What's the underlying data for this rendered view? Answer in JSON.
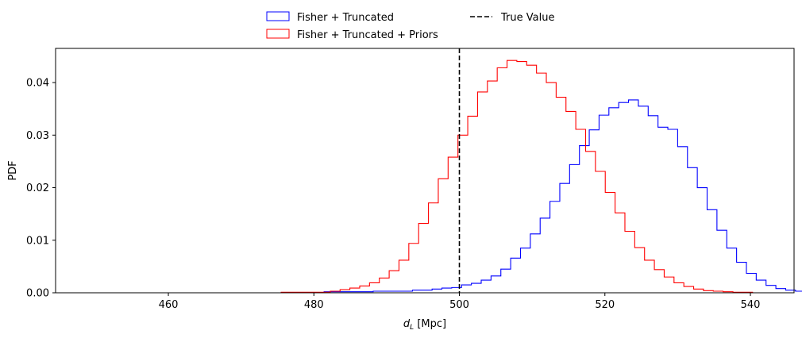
{
  "chart_data": {
    "type": "histogram",
    "xlabel_main": "d",
    "xlabel_sub": "L",
    "xlabel_unit": " [Mpc]",
    "ylabel": "PDF",
    "xlim": [
      444.5,
      546
    ],
    "ylim": [
      0,
      0.0465
    ],
    "xticks": [
      460,
      480,
      500,
      520,
      540
    ],
    "yticks": [
      0.0,
      0.01,
      0.02,
      0.03,
      0.04
    ],
    "ytick_labels": [
      "0.00",
      "0.01",
      "0.02",
      "0.03",
      "0.04"
    ],
    "grid": false,
    "legend_position": "top-center",
    "true_value": {
      "name": "True Value",
      "x": 500,
      "color": "#000000"
    },
    "series": [
      {
        "name": "Fisher + Truncated",
        "color": "#0000ff",
        "bin_start": 449,
        "bin_width": 1.35,
        "values": [
          0,
          0,
          0,
          0,
          0,
          0,
          0,
          0,
          0,
          0,
          0,
          0,
          0,
          0,
          0,
          0,
          0,
          0,
          0,
          0,
          0,
          0,
          0,
          0,
          0.0002,
          0.0002,
          0.0002,
          0.0002,
          0.0002,
          0.0003,
          0.0003,
          0.0003,
          0.0003,
          0.0005,
          0.0005,
          0.0007,
          0.0009,
          0.001,
          0.0015,
          0.0018,
          0.0024,
          0.0032,
          0.0045,
          0.0066,
          0.0085,
          0.0112,
          0.0142,
          0.0174,
          0.0208,
          0.0244,
          0.028,
          0.031,
          0.0338,
          0.0352,
          0.0362,
          0.0367,
          0.0355,
          0.0337,
          0.0315,
          0.0311,
          0.0278,
          0.0238,
          0.02,
          0.0158,
          0.0119,
          0.0085,
          0.0058,
          0.0037,
          0.0024,
          0.0014,
          0.0008,
          0.0005,
          0.0003,
          0.0002,
          0.0001,
          0.0001,
          0.0001,
          0.0001,
          0.0001,
          0.0001,
          0.0001,
          0.0001,
          0.0001,
          0.0001
        ]
      },
      {
        "name": "Fisher + Truncated + Priors",
        "color": "#ff0000",
        "bin_start": 475.5,
        "bin_width": 1.35,
        "values": [
          0.0001,
          0.0001,
          0.0001,
          0.0001,
          0.0001,
          0.0003,
          0.0006,
          0.0009,
          0.0013,
          0.0019,
          0.0028,
          0.0042,
          0.0062,
          0.0094,
          0.0132,
          0.0171,
          0.0217,
          0.0258,
          0.03,
          0.0336,
          0.0382,
          0.0403,
          0.0428,
          0.0442,
          0.044,
          0.0433,
          0.0418,
          0.04,
          0.0372,
          0.0345,
          0.0311,
          0.0269,
          0.0231,
          0.0191,
          0.0152,
          0.0117,
          0.0086,
          0.0062,
          0.0044,
          0.003,
          0.0019,
          0.0012,
          0.0007,
          0.0004,
          0.0003,
          0.0002,
          0.0001,
          0.0001
        ]
      }
    ]
  }
}
